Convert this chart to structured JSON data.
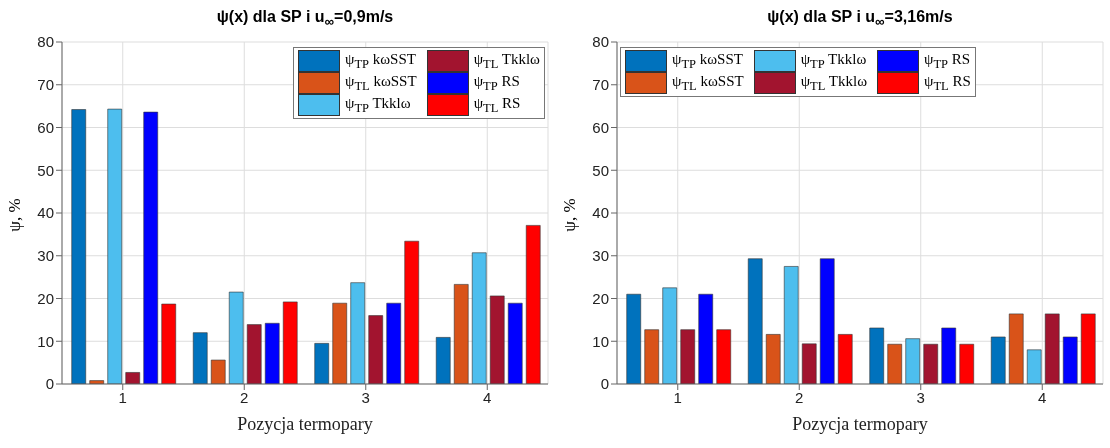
{
  "chart_data": [
    {
      "type": "bar",
      "title": "ψ(x) dla SP i u$_{∞}$=0,9m/s",
      "xlabel": "Pozycja termopary",
      "ylabel": "ψ, %",
      "categories": [
        "1",
        "2",
        "3",
        "4"
      ],
      "ylim": [
        0,
        80
      ],
      "yticks": [
        0,
        10,
        20,
        30,
        40,
        50,
        60,
        70,
        80
      ],
      "grid": true,
      "legend": "top right",
      "series": [
        {
          "name": "ψ$_{TP}$ kωSST",
          "color": "#0072bd",
          "values": [
            64.2,
            12.0,
            9.5,
            10.9
          ]
        },
        {
          "name": "ψ$_{TL}$ kωSST",
          "color": "#d95319",
          "values": [
            0.8,
            5.6,
            18.9,
            23.3
          ]
        },
        {
          "name": "ψ$_{TP}$ Tkklω",
          "color": "#4dbeee",
          "values": [
            64.3,
            21.5,
            23.7,
            30.7
          ]
        },
        {
          "name": "ψ$_{TL}$ Tkklω",
          "color": "#a2142f",
          "values": [
            2.7,
            13.9,
            16.0,
            20.6
          ]
        },
        {
          "name": "ψ$_{TP}$ RS",
          "color": "#0000ff",
          "values": [
            63.6,
            14.2,
            18.9,
            18.9
          ]
        },
        {
          "name": "ψ$_{TL}$ RS",
          "color": "#ff0000",
          "values": [
            18.7,
            19.2,
            33.4,
            37.1
          ]
        }
      ]
    },
    {
      "type": "bar",
      "title": "ψ(x) dla SP i u$_{∞}$=3,16m/s",
      "xlabel": "Pozycja termopary",
      "ylabel": "ψ, %",
      "categories": [
        "1",
        "2",
        "3",
        "4"
      ],
      "ylim": [
        0,
        80
      ],
      "yticks": [
        0,
        10,
        20,
        30,
        40,
        50,
        60,
        70,
        80
      ],
      "grid": true,
      "legend": "top left",
      "series": [
        {
          "name": "ψ$_{TP}$ kωSST",
          "color": "#0072bd",
          "values": [
            21.0,
            29.3,
            13.1,
            11.0
          ]
        },
        {
          "name": "ψ$_{TL}$ kωSST",
          "color": "#d95319",
          "values": [
            12.7,
            11.6,
            9.3,
            16.4
          ]
        },
        {
          "name": "ψ$_{TP}$ Tkklω",
          "color": "#4dbeee",
          "values": [
            22.5,
            27.5,
            10.6,
            8.0
          ]
        },
        {
          "name": "ψ$_{TL}$ Tkklω",
          "color": "#a2142f",
          "values": [
            12.7,
            9.4,
            9.3,
            16.4
          ]
        },
        {
          "name": "ψ$_{TP}$ RS",
          "color": "#0000ff",
          "values": [
            21.0,
            29.3,
            13.1,
            11.0
          ]
        },
        {
          "name": "ψ$_{TL}$ RS",
          "color": "#ff0000",
          "values": [
            12.7,
            11.6,
            9.3,
            16.4
          ]
        }
      ]
    }
  ]
}
